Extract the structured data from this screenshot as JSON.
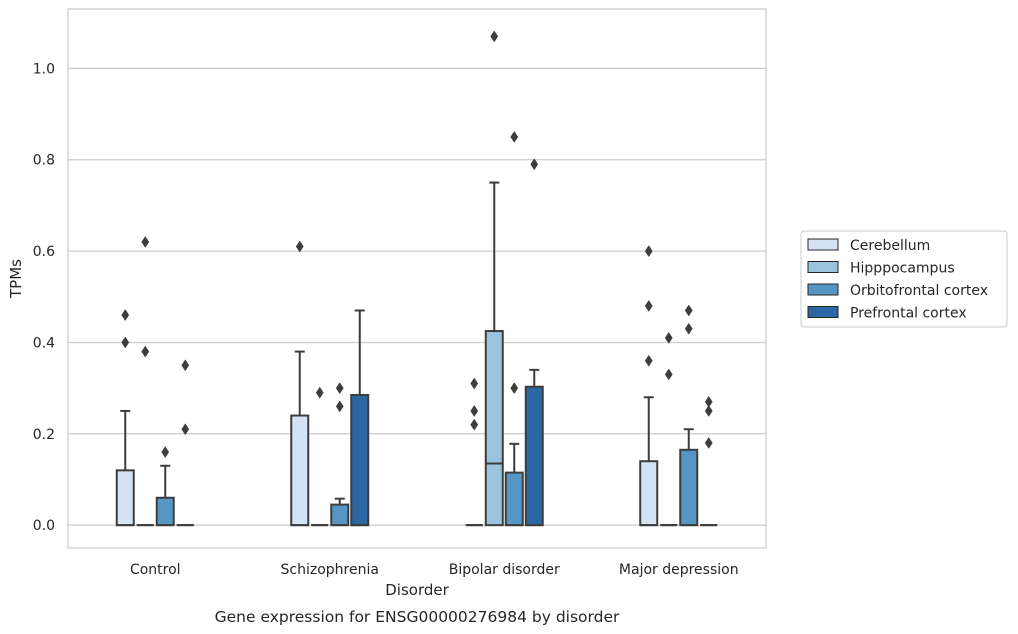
{
  "chart_data": {
    "type": "box",
    "caption": "Gene expression for ENSG00000276984 by disorder",
    "xlabel": "Disorder",
    "ylabel": "TPMs",
    "ylim": [
      -0.05,
      1.13
    ],
    "yticks": [
      0.0,
      0.2,
      0.4,
      0.6,
      0.8,
      1.0
    ],
    "ytick_labels": [
      "0.0",
      "0.2",
      "0.4",
      "0.6",
      "0.8",
      "1.0"
    ],
    "grid": "horizontal",
    "legend_position": "right",
    "categories": [
      "Control",
      "Schizophrenia",
      "Bipolar disorder",
      "Major depression"
    ],
    "series": [
      {
        "name": "Cerebellum",
        "color": "#d4e3f3",
        "boxes": [
          {
            "q1": 0.0,
            "median": 0.0,
            "q3": 0.12,
            "whisker_low": 0.0,
            "whisker_high": 0.25,
            "outliers": [
              0.4,
              0.46
            ]
          },
          {
            "q1": 0.0,
            "median": 0.0,
            "q3": 0.24,
            "whisker_low": 0.0,
            "whisker_high": 0.38,
            "outliers": [
              0.61
            ]
          },
          {
            "q1": 0.0,
            "median": 0.0,
            "q3": 0.0,
            "whisker_low": 0.0,
            "whisker_high": 0.0,
            "outliers": [
              0.22,
              0.25,
              0.31
            ]
          },
          {
            "q1": 0.0,
            "median": 0.0,
            "q3": 0.14,
            "whisker_low": 0.0,
            "whisker_high": 0.28,
            "outliers": [
              0.36,
              0.48,
              0.6
            ]
          }
        ]
      },
      {
        "name": "Hipppocampus",
        "color": "#9ac3dd",
        "boxes": [
          {
            "q1": 0.0,
            "median": 0.0,
            "q3": 0.0,
            "whisker_low": 0.0,
            "whisker_high": 0.0,
            "outliers": [
              0.38,
              0.62
            ]
          },
          {
            "q1": 0.0,
            "median": 0.0,
            "q3": 0.0,
            "whisker_low": 0.0,
            "whisker_high": 0.0,
            "outliers": [
              0.29
            ]
          },
          {
            "q1": 0.0,
            "median": 0.135,
            "q3": 0.425,
            "whisker_low": 0.0,
            "whisker_high": 0.75,
            "outliers": [
              1.07
            ]
          },
          {
            "q1": 0.0,
            "median": 0.0,
            "q3": 0.0,
            "whisker_low": 0.0,
            "whisker_high": 0.0,
            "outliers": [
              0.33,
              0.41
            ]
          }
        ]
      },
      {
        "name": "Orbitofrontal cortex",
        "color": "#5596c4",
        "boxes": [
          {
            "q1": 0.0,
            "median": 0.0,
            "q3": 0.06,
            "whisker_low": 0.0,
            "whisker_high": 0.13,
            "outliers": [
              0.16
            ]
          },
          {
            "q1": 0.0,
            "median": 0.0,
            "q3": 0.045,
            "whisker_low": 0.0,
            "whisker_high": 0.058,
            "outliers": [
              0.26,
              0.3
            ]
          },
          {
            "q1": 0.0,
            "median": 0.0,
            "q3": 0.115,
            "whisker_low": 0.0,
            "whisker_high": 0.178,
            "outliers": [
              0.3,
              0.85
            ]
          },
          {
            "q1": 0.0,
            "median": 0.0,
            "q3": 0.165,
            "whisker_low": 0.0,
            "whisker_high": 0.21,
            "outliers": [
              0.43,
              0.47
            ]
          }
        ]
      },
      {
        "name": "Prefrontal cortex",
        "color": "#2a67a3",
        "boxes": [
          {
            "q1": 0.0,
            "median": 0.0,
            "q3": 0.0,
            "whisker_low": 0.0,
            "whisker_high": 0.0,
            "outliers": [
              0.21,
              0.35
            ]
          },
          {
            "q1": 0.0,
            "median": 0.0,
            "q3": 0.285,
            "whisker_low": 0.0,
            "whisker_high": 0.47,
            "outliers": []
          },
          {
            "q1": 0.0,
            "median": 0.0,
            "q3": 0.303,
            "whisker_low": 0.0,
            "whisker_high": 0.34,
            "outliers": [
              0.79
            ]
          },
          {
            "q1": 0.0,
            "median": 0.0,
            "q3": 0.0,
            "whisker_low": 0.0,
            "whisker_high": 0.0,
            "outliers": [
              0.18,
              0.25,
              0.27
            ]
          }
        ]
      }
    ]
  }
}
